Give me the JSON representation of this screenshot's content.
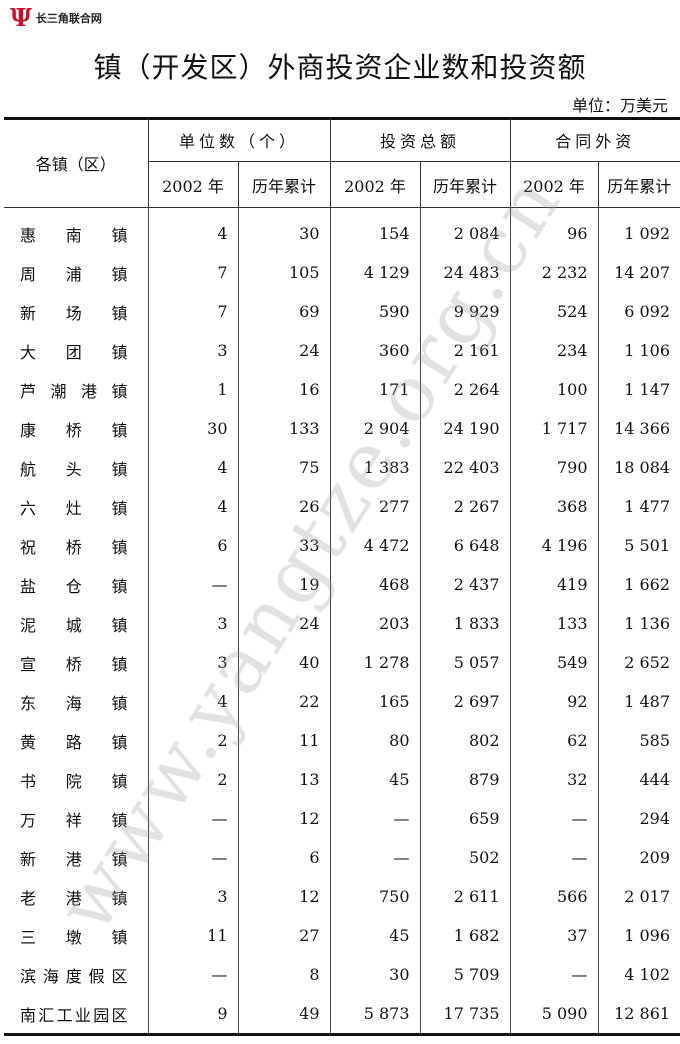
{
  "logo": {
    "mark": "Ψ",
    "text": "长三角联合网"
  },
  "title": "镇（开发区）外商投资企业数和投资额",
  "unit": "单位：万美元",
  "watermark": "www.yangtze.org.cn",
  "header": {
    "region": "各镇（区）",
    "groups": [
      "单位数（个）",
      "投资总额",
      "合同外资"
    ],
    "sub": [
      "2002 年",
      "历年累计",
      "2002 年",
      "历年累计",
      "2002 年",
      "历年累计"
    ]
  },
  "rows": [
    {
      "name": "惠南镇",
      "v": [
        "4",
        "30",
        "154",
        "2 084",
        "96",
        "1 092"
      ]
    },
    {
      "name": "周浦镇",
      "v": [
        "7",
        "105",
        "4 129",
        "24 483",
        "2 232",
        "14 207"
      ]
    },
    {
      "name": "新场镇",
      "v": [
        "7",
        "69",
        "590",
        "9 929",
        "524",
        "6 092"
      ]
    },
    {
      "name": "大团镇",
      "v": [
        "3",
        "24",
        "360",
        "2 161",
        "234",
        "1 106"
      ]
    },
    {
      "name": "芦潮港镇",
      "v": [
        "1",
        "16",
        "171",
        "2 264",
        "100",
        "1 147"
      ]
    },
    {
      "name": "康桥镇",
      "v": [
        "30",
        "133",
        "2 904",
        "24 190",
        "1 717",
        "14 366"
      ]
    },
    {
      "name": "航头镇",
      "v": [
        "4",
        "75",
        "1 383",
        "22 403",
        "790",
        "18 084"
      ]
    },
    {
      "name": "六灶镇",
      "v": [
        "4",
        "26",
        "277",
        "2 267",
        "368",
        "1 477"
      ]
    },
    {
      "name": "祝桥镇",
      "v": [
        "6",
        "33",
        "4 472",
        "6 648",
        "4 196",
        "5 501"
      ]
    },
    {
      "name": "盐仓镇",
      "v": [
        "—",
        "19",
        "468",
        "2 437",
        "419",
        "1 662"
      ]
    },
    {
      "name": "泥城镇",
      "v": [
        "3",
        "24",
        "203",
        "1 833",
        "133",
        "1 136"
      ]
    },
    {
      "name": "宣桥镇",
      "v": [
        "3",
        "40",
        "1 278",
        "5 057",
        "549",
        "2 652"
      ]
    },
    {
      "name": "东海镇",
      "v": [
        "4",
        "22",
        "165",
        "2 697",
        "92",
        "1 487"
      ]
    },
    {
      "name": "黄路镇",
      "v": [
        "2",
        "11",
        "80",
        "802",
        "62",
        "585"
      ]
    },
    {
      "name": "书院镇",
      "v": [
        "2",
        "13",
        "45",
        "879",
        "32",
        "444"
      ]
    },
    {
      "name": "万祥镇",
      "v": [
        "—",
        "12",
        "—",
        "659",
        "—",
        "294"
      ]
    },
    {
      "name": "新港镇",
      "v": [
        "—",
        "6",
        "—",
        "502",
        "—",
        "209"
      ]
    },
    {
      "name": "老港镇",
      "v": [
        "3",
        "12",
        "750",
        "2 611",
        "566",
        "2 017"
      ]
    },
    {
      "name": "三墩镇",
      "v": [
        "11",
        "27",
        "45",
        "1 682",
        "37",
        "1 096"
      ]
    },
    {
      "name": "滨海度假区",
      "v": [
        "—",
        "8",
        "30",
        "5 709",
        "—",
        "4 102"
      ]
    },
    {
      "name": "南汇工业园区",
      "v": [
        "9",
        "49",
        "5 873",
        "17 735",
        "5 090",
        "12 861"
      ]
    }
  ]
}
